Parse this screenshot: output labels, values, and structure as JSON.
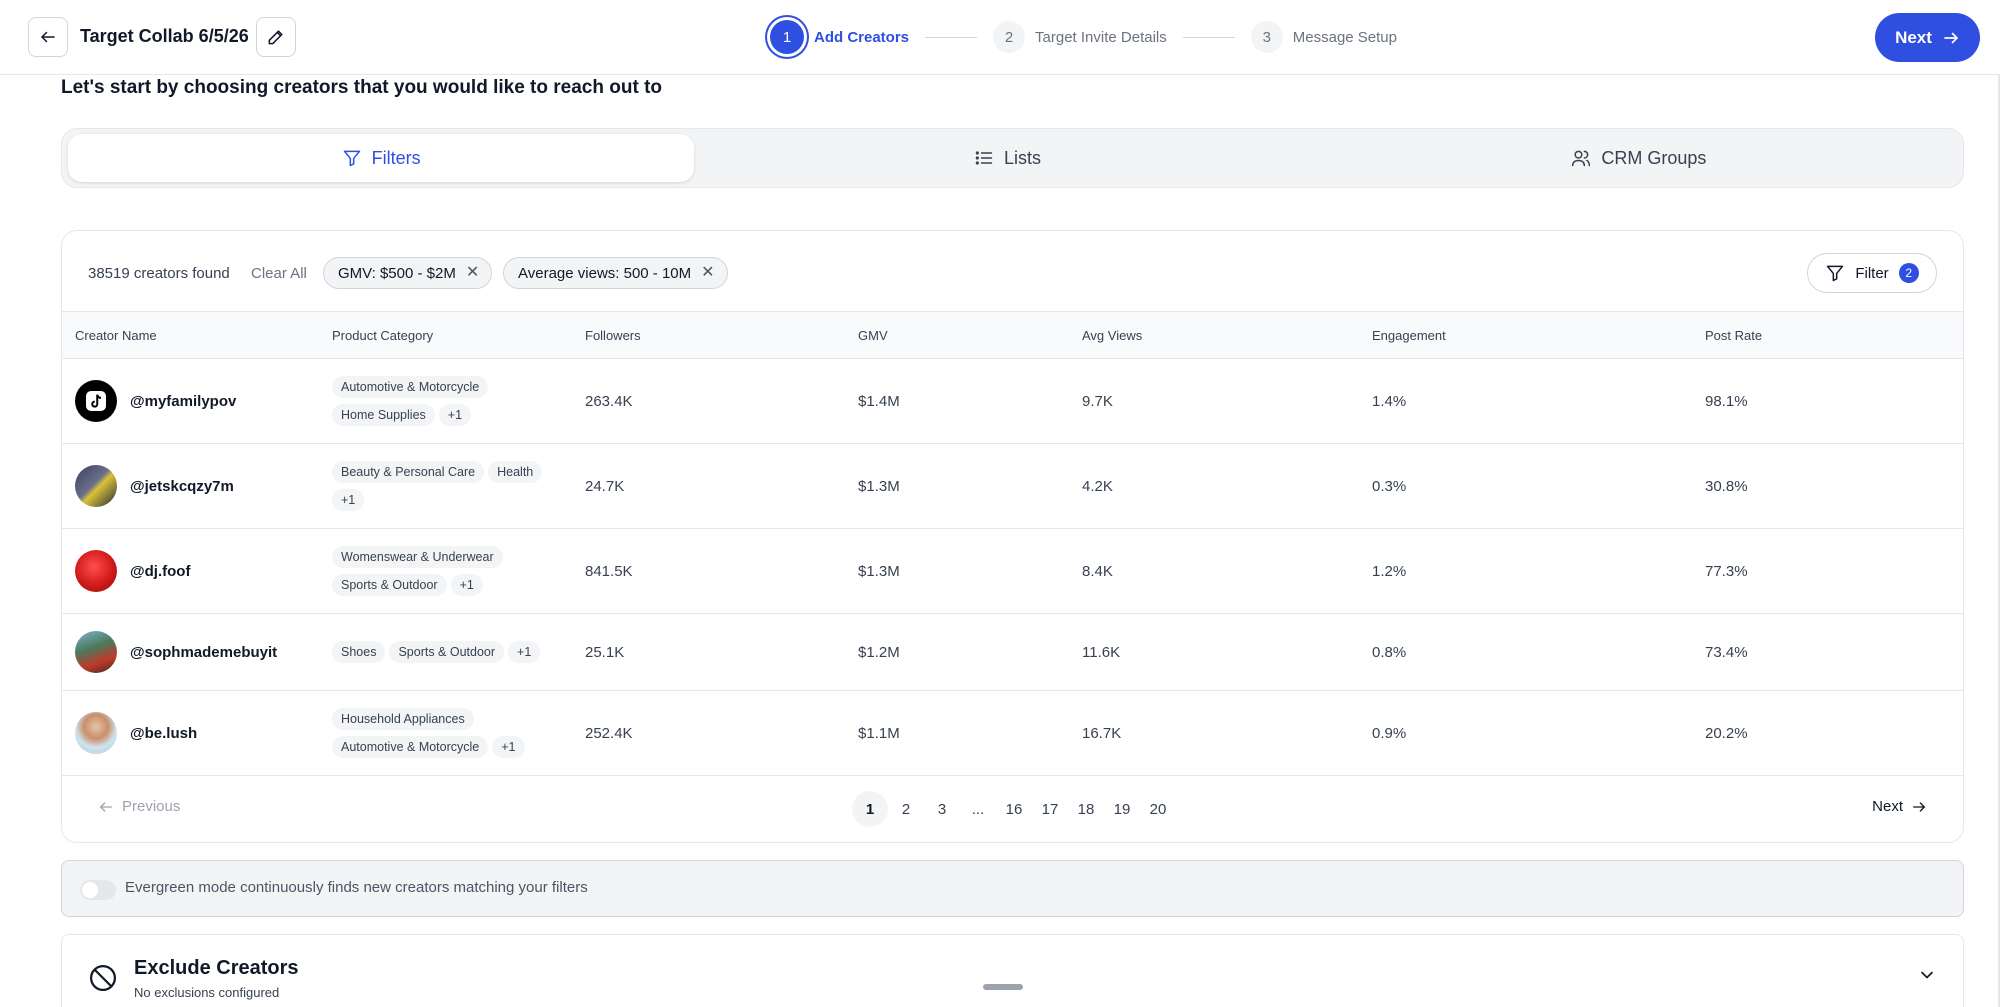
{
  "header": {
    "title": "Target Collab 6/5/26",
    "steps": [
      {
        "num": "1",
        "label": "Add Creators"
      },
      {
        "num": "2",
        "label": "Target Invite Details"
      },
      {
        "num": "3",
        "label": "Message Setup"
      }
    ],
    "next_label": "Next"
  },
  "headline": "Let's start by choosing creators that you would like to reach out to",
  "tabs": [
    {
      "label": "Filters",
      "icon": "filter-icon"
    },
    {
      "label": "Lists",
      "icon": "list-icon"
    },
    {
      "label": "CRM Groups",
      "icon": "users-icon"
    }
  ],
  "results": {
    "count_text": "38519 creators found",
    "clear_all": "Clear All",
    "chips": [
      {
        "label": "GMV: $500 - $2M"
      },
      {
        "label": "Average views: 500 - 10M"
      }
    ],
    "filter_label": "Filter",
    "filter_count": "2"
  },
  "table": {
    "columns": [
      "Creator Name",
      "Product Category",
      "Followers",
      "GMV",
      "Avg Views",
      "Engagement",
      "Post Rate"
    ],
    "rows": [
      {
        "name": "@myfamilypov",
        "tags": [
          "Automotive & Motorcycle",
          "Home Supplies",
          "+1"
        ],
        "followers": "263.4K",
        "gmv": "$1.4M",
        "avg_views": "9.7K",
        "engagement": "1.4%",
        "post_rate": "98.1%"
      },
      {
        "name": "@jetskcqzy7m",
        "tags": [
          "Beauty & Personal Care",
          "Health",
          "+1"
        ],
        "followers": "24.7K",
        "gmv": "$1.3M",
        "avg_views": "4.2K",
        "engagement": "0.3%",
        "post_rate": "30.8%"
      },
      {
        "name": "@dj.foof",
        "tags": [
          "Womenswear & Underwear",
          "Sports & Outdoor",
          "+1"
        ],
        "followers": "841.5K",
        "gmv": "$1.3M",
        "avg_views": "8.4K",
        "engagement": "1.2%",
        "post_rate": "77.3%"
      },
      {
        "name": "@sophmademebuyit",
        "tags": [
          "Shoes",
          "Sports & Outdoor",
          "+1"
        ],
        "followers": "25.1K",
        "gmv": "$1.2M",
        "avg_views": "11.6K",
        "engagement": "0.8%",
        "post_rate": "73.4%"
      },
      {
        "name": "@be.lush",
        "tags": [
          "Household Appliances",
          "Automotive & Motorcycle",
          "+1"
        ],
        "followers": "252.4K",
        "gmv": "$1.1M",
        "avg_views": "16.7K",
        "engagement": "0.9%",
        "post_rate": "20.2%"
      }
    ]
  },
  "pagination": {
    "previous": "Previous",
    "pages": [
      "1",
      "2",
      "3",
      "...",
      "16",
      "17",
      "18",
      "19",
      "20"
    ],
    "current": "1",
    "next": "Next"
  },
  "evergreen": {
    "text": "Evergreen mode continuously finds new creators matching your filters"
  },
  "exclude": {
    "title": "Exclude Creators",
    "subtitle": "No exclusions configured"
  },
  "colors": {
    "accent": "#2f4fe0",
    "border": "#e5e7eb",
    "muted": "#6b7280"
  }
}
